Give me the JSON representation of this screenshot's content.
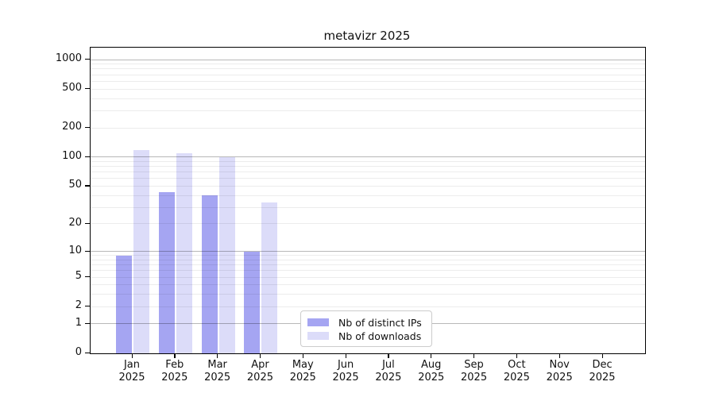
{
  "title": "metavizr 2025",
  "legend": {
    "items": [
      {
        "label": "Nb of distinct IPs",
        "color": "#a5a5f2"
      },
      {
        "label": "Nb of downloads",
        "color": "#dcdcf9"
      }
    ]
  },
  "chart_data": {
    "type": "bar",
    "title": "metavizr 2025",
    "categories": [
      "Jan",
      "Feb",
      "Mar",
      "Apr",
      "May",
      "Jun",
      "Jul",
      "Aug",
      "Sep",
      "Oct",
      "Nov",
      "Dec"
    ],
    "x_year": "2025",
    "series": [
      {
        "name": "Nb of distinct IPs",
        "color": "#a5a5f2",
        "values": [
          9,
          43,
          40,
          10,
          null,
          null,
          null,
          null,
          null,
          null,
          null,
          null
        ]
      },
      {
        "name": "Nb of downloads",
        "color": "#dcdcf9",
        "values": [
          118,
          110,
          100,
          34,
          null,
          null,
          null,
          null,
          null,
          null,
          null,
          null
        ]
      }
    ],
    "yscale": "log1p",
    "yticks": [
      0,
      1,
      2,
      5,
      10,
      20,
      50,
      100,
      200,
      500,
      1000
    ],
    "ylim": [
      0,
      1325
    ],
    "grid": true,
    "grid_major": [
      1,
      10,
      100,
      1000
    ],
    "grid_minor": [
      2,
      3,
      4,
      5,
      6,
      7,
      8,
      9,
      20,
      30,
      40,
      50,
      60,
      70,
      80,
      90,
      200,
      300,
      400,
      500,
      600,
      700,
      800,
      900
    ],
    "legend_position": "lower center",
    "colors": {
      "axis": "#000000",
      "grid_major": "#b5b5b5",
      "grid_minor": "#ebebeb",
      "text": "#111111"
    }
  }
}
